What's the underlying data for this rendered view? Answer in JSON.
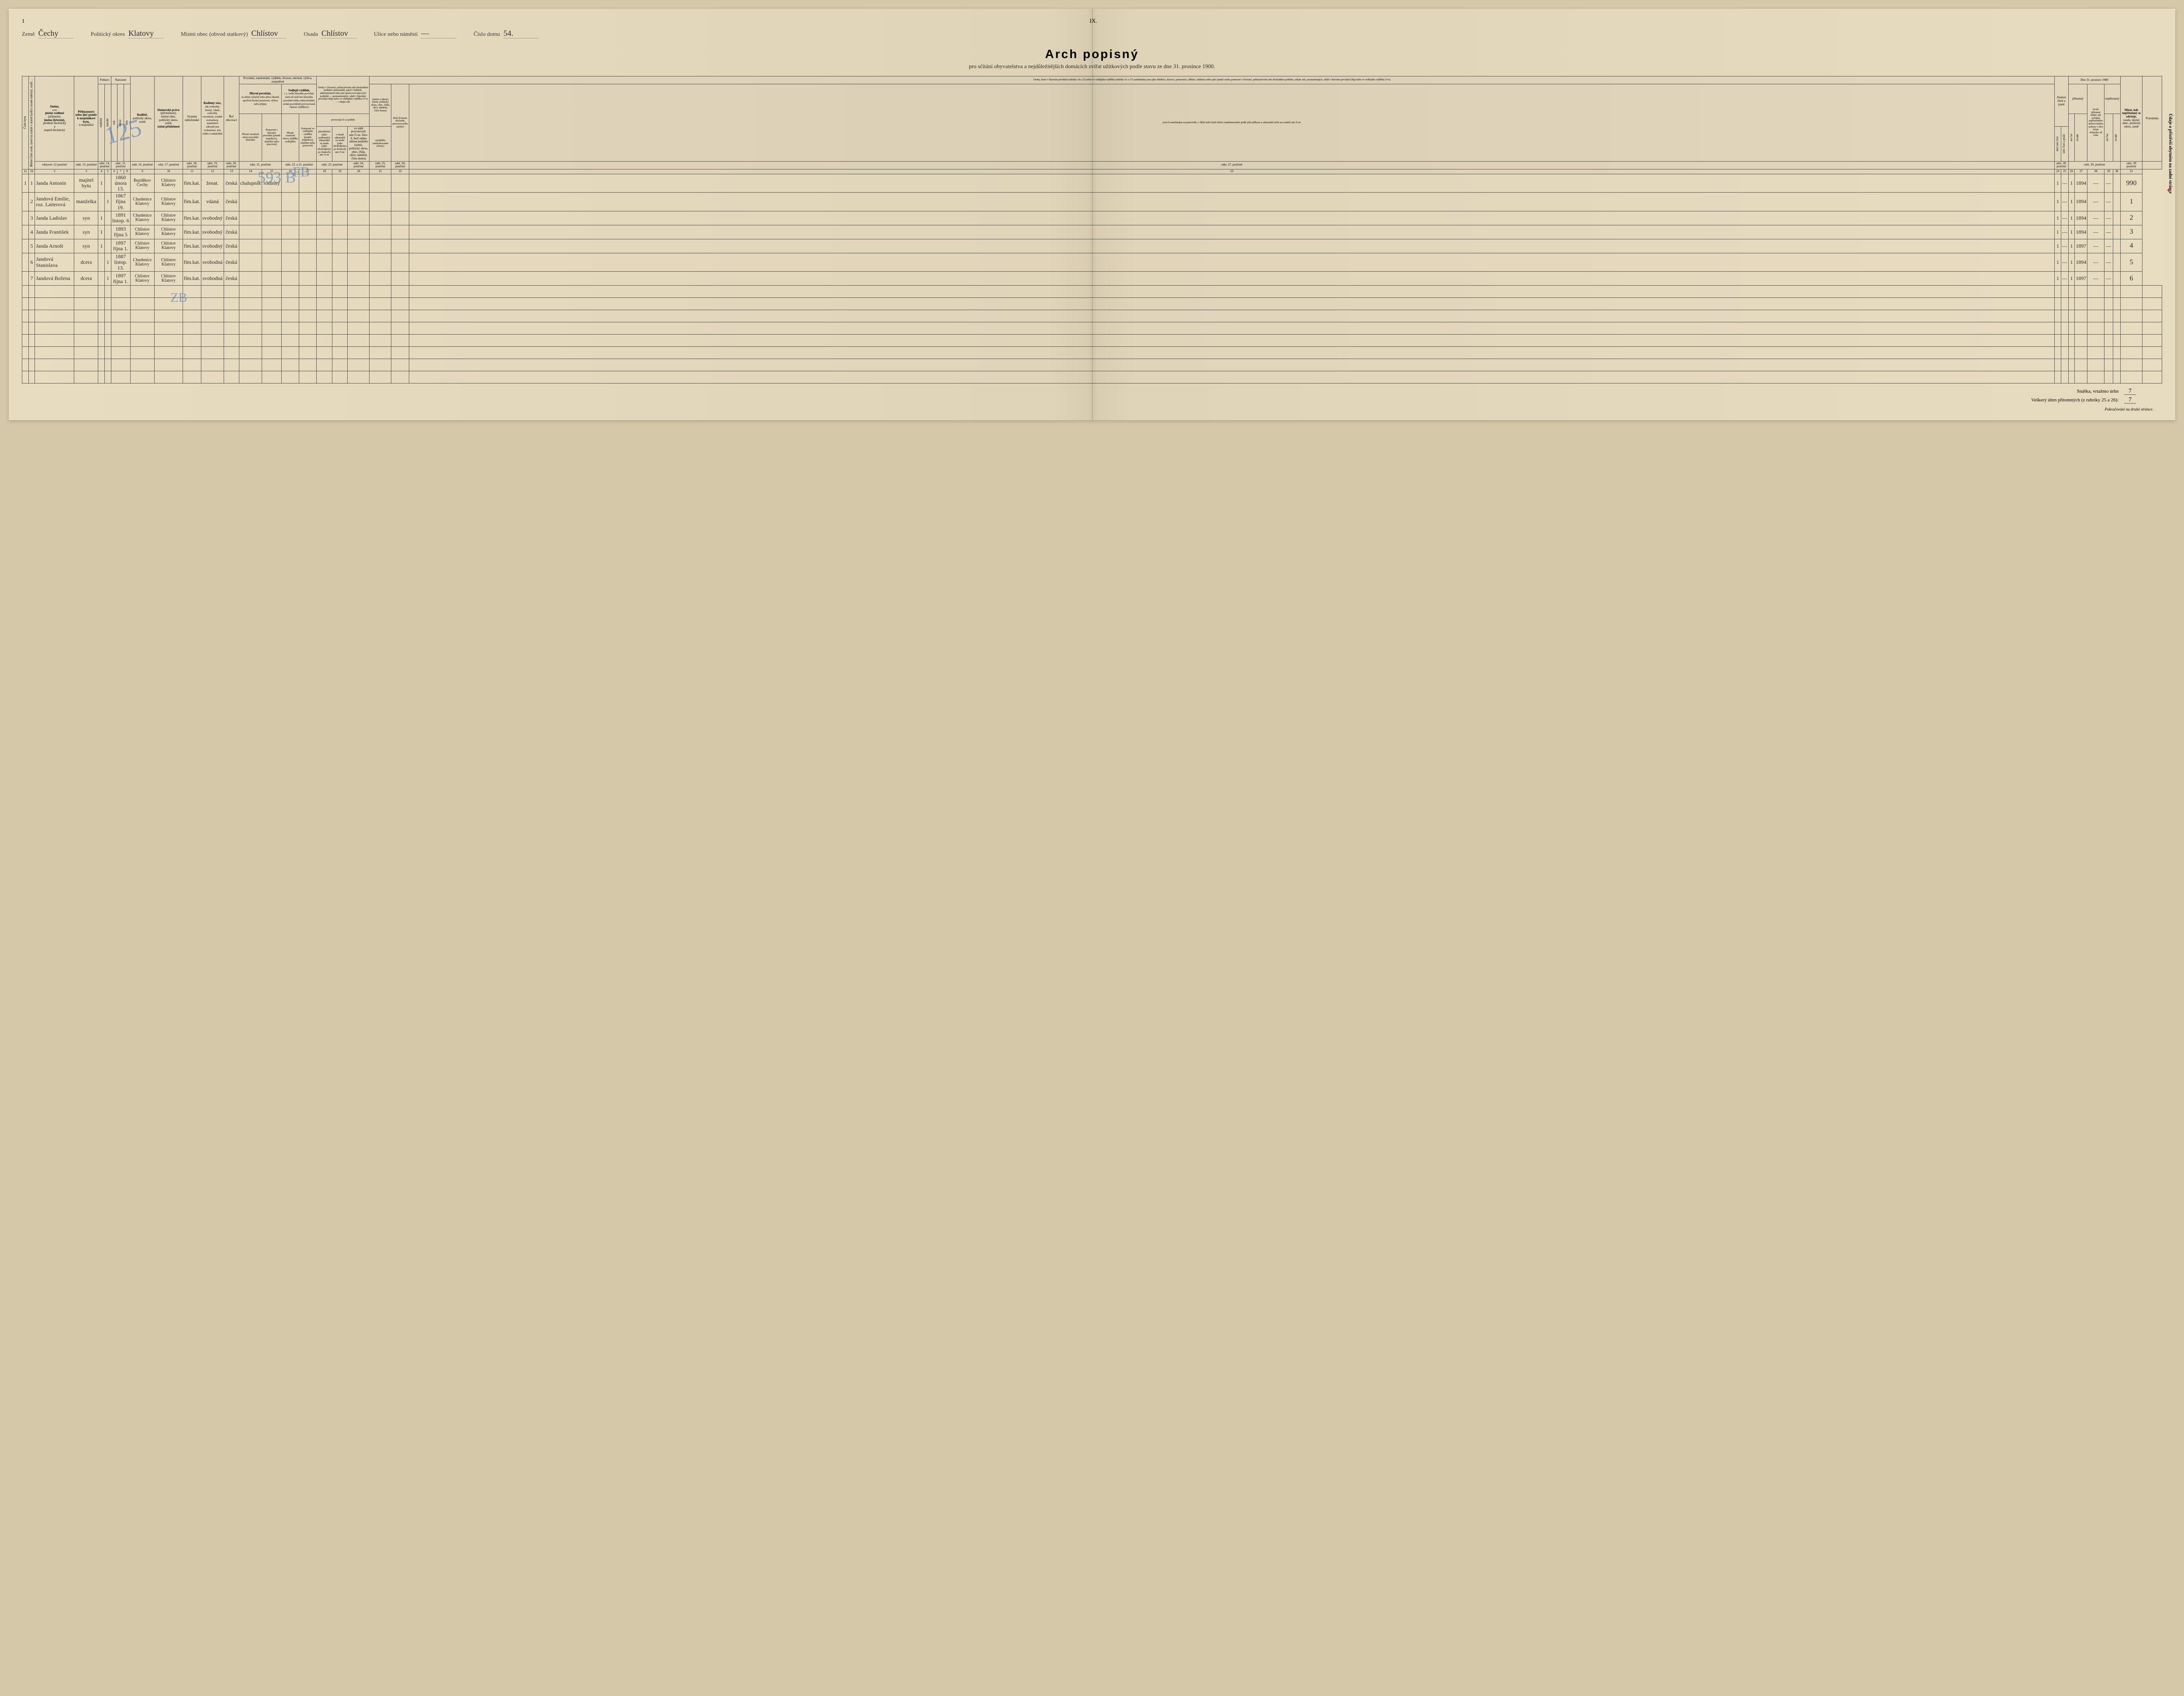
{
  "page": {
    "left_num": "1",
    "roman": "IX."
  },
  "header": {
    "zeme_label": "Země",
    "zeme_value": "Čechy",
    "okres_label": "Politický okres",
    "okres_value": "Klatovy",
    "obec_label": "Místní obec (obvod statkový)",
    "obec_value": "Chlístov",
    "osada_label": "Osada",
    "osada_value": "Chlístov",
    "ulice_label": "Ulice nebo náměstí",
    "ulice_value": "—",
    "dum_label": "Číslo domu",
    "dum_value": "54."
  },
  "title": {
    "main": "Arch popisný",
    "sub": "pro sčítání obyvatelstva a nejdůležitějších domácích zvířat užitkových podle stavu ze dne 31. prosince 1900."
  },
  "columns": {
    "c1": "Číslo bytu",
    "c1b": "Běžné číslo osob, které ku každé v domě bydlící straně náležejí, tudíž…",
    "c2": "Jméno,",
    "c2a": "a to",
    "c2b": "jméno rodinné",
    "c2c": "(příjmení),",
    "c2d": "jméno (křestní),",
    "c2e": "predikát šlechtický",
    "c2f": "a",
    "c2g": "stupeň šlechtický",
    "c3": "Příbuzenství nebo jiný poměr k majetníkovi bytu,",
    "c3a": "u majetníků",
    "c4h": "Pohlaví",
    "c4a": "mužské",
    "c4b": "ženské",
    "c5h": "Narození",
    "c5a": "rok",
    "c5b": "měsíc",
    "c5c": "den",
    "c6": "Rodiště,",
    "c6a": "politický okres, země",
    "c7": "Domovské právo",
    "c7a": "(příslušnost),",
    "c7b": "místní obec, politický okres, země,",
    "c7c": "státní příslušnost",
    "c8": "Vyznání náboženské",
    "c9": "Rodinný stav,",
    "c9a": "zda svobodný, ženatý, vdaná, ovdovělý, rozvedený, soudně rozloučený; manželství zákonně jest rozloučeno, toto toliko u nekatolíků",
    "c10": "Řeč obcovací",
    "c11h": "Povolání, zaměstnání, výdělek, živnost, obchod, výživa, zaopatření",
    "c11a": "Hlavní povolání,",
    "c11at": "na němž výlučně nebo přece hlavně spočívá životní postavení, výživa nebo příjmy",
    "c11a1": "Přesné označení oboru povolání hlavního",
    "c11a2": "Postavení v hlavním povolání (poměr majetkový, služební nebo pracovní)",
    "c11b": "Vedlejší výdělek,",
    "c11bt": "t. j. vedle hlavního povolání (neb od osob bez hlavního povolání toliko mimochodně) avšak pravidelně provozovaná činnost výdělková",
    "c11b1": "Přesné označení oboru výdělku vedlejšího",
    "c11b2": "Postavení ve vedlejším výdělku (poměr majetkový, služební nebo pracovní)",
    "c12h": "Osoby v živnosti, průmyslovém neb obchodním podniku samostatně, jakož i ředitelé, administrátoři nebo jiní správcové takových podniků — poznamenajíce, zdali v hlavním povolání (Hp) nebo ve vedlejším výdělku (Vv) — udejte zde",
    "c12a": "provozuje-li se podnik",
    "c12a1": "přezáležení (jako podomních zákazníků za mzdu (jako obchodpráce po domech) ano či ne",
    "c12a2": "v domě zákazníků za mzdu (jako obchodpráce po domech) ano či ne",
    "c12a3": "ve stálé provozovně, ano či ne. Ano-li, buď udána adresa podniku (země, politický okres, obec, třída, ulice, náměstí, číslo domu)",
    "c13h": "Osoby, které v hlavním povolání (rubrika 14 a 15) nebo ve vedlejším výdělku (rubrika 16 a 17) zaměstnány jsou jako úředníci, dozorci, pomocníci, dělníci, nádeníci nebo jako jinaké osoby pomocné v živnosti, průmyslovém neb obchodním podniku, udejte zde, poznamenajíce, zdali v hlavním povolání (Hp) nebo ve vedlejším výdělku (Vv):",
    "c13a": "jméno a adresu (zemi, politický okres, obec, třídu, ulici, náměstí, číslo domu)",
    "c13b": "druh živnosti, obchodu, provozovacího odvětví",
    "c13c": "jsou-li zaměstnány na pracovišti, v dílně nebo bytě tohoto zaměstnavatele podle jeho příkazu u zákazníků nebo na cestách ano či ne",
    "c13d": "nynějšího zaměstnavatele (firmy)",
    "c14": "Znalost čtení a psaní",
    "c14a": "umí jen čísti",
    "c14b": "umí čísti a psáti",
    "c15h": "Dne 31. prosince 1900",
    "c15a": "přítomný",
    "c15b": "nepřítomný",
    "c15a1": "na čas",
    "c15a2": "trvale",
    "c15c": "trvale přítomní udejte zde počátek nepřetržitého dobrovolného pobytu v obci místa sčítacího od roku",
    "c16": "Místo, kde nepřítomný se zdržuje,",
    "c16a": "osada, místní obec, politický okres, země",
    "c17": "Poznámka",
    "side": "Údaje o přístřeší obytném na zadní stránce",
    "colnums": [
      "1a",
      "1b",
      "2",
      "3",
      "4",
      "5",
      "6",
      "7",
      "8",
      "9",
      "10",
      "11",
      "12",
      "13",
      "14",
      "15",
      "16",
      "17",
      "18",
      "19",
      "20",
      "21",
      "22",
      "23",
      "24",
      "25",
      "26",
      "27",
      "28",
      "29",
      "30",
      "31"
    ],
    "refs": {
      "r2": "odstavec 12 poučení",
      "r3": "odst. 13. poučení",
      "r45": "odst. 14. poučení",
      "r678": "odst. 15. poučení",
      "r9": "odst. 16. poučení",
      "r10": "odst. 17. poučení",
      "r11": "odst. 18. poučení",
      "r12": "odst. 19. poučení",
      "r13": "odst. 20. poučení",
      "r1415": "odst. 21. poučení",
      "r1617": "odst. 22. a 21. poučení",
      "r1819": "odst. 23. poučení",
      "r20": "odst. 24. poučení",
      "r21": "odst. 25. poučení",
      "r22": "odst. 26. poučení",
      "r23": "odst. 27. poučení",
      "r24": "odst. 28. poučení",
      "r25_29": "odst. 29. poučení",
      "r30": "odst. 30 poučení"
    }
  },
  "rows": [
    {
      "n": "1",
      "bn": "1",
      "name": "Janda Antonín",
      "rel": "majitel bytu",
      "m": "1",
      "f": "",
      "born": "1860 února 13.",
      "rod": "Bezděkov / Čechy",
      "dom": "Chlístov / Klatovy",
      "rel_c": "řím.kat.",
      "stav": "ženat.",
      "rec": "česká",
      "pov1": "chalupník",
      "pov2": "rodinný",
      "yr": "1894",
      "poz": "990"
    },
    {
      "n": "",
      "bn": "2",
      "name": "Jandová Emilie, roz. Laiterová",
      "rel": "manželka",
      "m": "",
      "f": "1",
      "born": "1867 října 19.",
      "rod": "Chudenice / Klatovy",
      "dom": "Chlístov / Klatovy",
      "rel_c": "řím.kat.",
      "stav": "vdaná",
      "rec": "česká",
      "pov1": "",
      "pov2": "",
      "yr": "1894",
      "poz": "1"
    },
    {
      "n": "",
      "bn": "3",
      "name": "Janda Ladislav",
      "rel": "syn",
      "m": "1",
      "f": "",
      "born": "1891 listop. 6",
      "rod": "Chudenice / Klatovy",
      "dom": "Chlístov / Klatovy",
      "rel_c": "řím.kat.",
      "stav": "svobodný",
      "rec": "česká",
      "pov1": "",
      "pov2": "",
      "yr": "1894",
      "poz": "2"
    },
    {
      "n": "",
      "bn": "4",
      "name": "Janda František",
      "rel": "syn",
      "m": "1",
      "f": "",
      "born": "1893 října 5",
      "rod": "Chlístov / Klatovy",
      "dom": "Chlístov / Klatovy",
      "rel_c": "řím.kat.",
      "stav": "svobodný",
      "rec": "česká",
      "pov1": "",
      "pov2": "",
      "yr": "1894",
      "poz": "3"
    },
    {
      "n": "",
      "bn": "5",
      "name": "Janda Arnošt",
      "rel": "syn",
      "m": "1",
      "f": "",
      "born": "1897 října 1.",
      "rod": "Chlístov / Klatovy",
      "dom": "Chlístov / Klatovy",
      "rel_c": "řím.kat.",
      "stav": "svobodný",
      "rec": "česká",
      "pov1": "",
      "pov2": "",
      "yr": "1897",
      "poz": "4"
    },
    {
      "n": "",
      "bn": "6",
      "name": "Jandová Stanislava",
      "rel": "dcera",
      "m": "",
      "f": "1",
      "born": "1887 listop. 13.",
      "rod": "Chudenice / Klatovy",
      "dom": "Chlístov / Klatovy",
      "rel_c": "řím.kat.",
      "stav": "svobodná",
      "rec": "česká",
      "pov1": "",
      "pov2": "",
      "yr": "1894",
      "poz": "5"
    },
    {
      "n": "",
      "bn": "7",
      "name": "Jandová Božena",
      "rel": "dcera",
      "m": "",
      "f": "1",
      "born": "1897 října 1.",
      "rod": "Chlístov / Klatovy",
      "dom": "Chlístov / Klatovy",
      "rel_c": "řím.kat.",
      "stav": "svobodná",
      "rec": "česká",
      "pov1": "",
      "pov2": "",
      "yr": "1897",
      "poz": "6"
    }
  ],
  "summary": {
    "snaska_label": "Snáška, vrtažmo úrhn",
    "snaska_val": "7",
    "total_label": "Veškerý úhrn přítomných (z rubriky 25 a 26):",
    "total_val": "7"
  },
  "footnote": "Pokračování na druhé stránce.",
  "blue": {
    "b1": "125",
    "b2": "593 B",
    "b3": "FB",
    "b4": "ZB"
  },
  "colors": {
    "paper": "#e8dcc0",
    "ink": "#2a2a2a",
    "border": "#555555",
    "blue_pencil": "#3a6bb8",
    "red_pencil": "#c0392b"
  }
}
